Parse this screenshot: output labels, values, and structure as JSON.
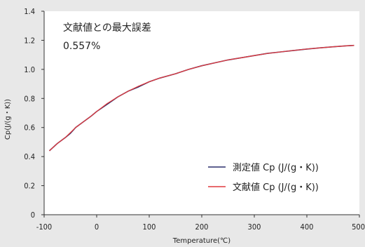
{
  "chart_data": {
    "type": "line",
    "xlabel": "Temperature(℃)",
    "ylabel": "Cp(J/(g・K))",
    "xlim": [
      -100,
      500
    ],
    "ylim": [
      0,
      1.4
    ],
    "x_ticks": [
      "-100",
      "0",
      "100",
      "200",
      "300",
      "400",
      "500"
    ],
    "y_ticks": [
      "0",
      "0.2",
      "0.4",
      "0.6",
      "0.8",
      "1.0",
      "1.2",
      "1.4"
    ],
    "grid": false,
    "legend_position": "bottom-right",
    "annotation": {
      "line1": "文献値との最大誤差",
      "line2": "0.557%"
    },
    "series": [
      {
        "name": "測定値 Cp (J/(g・K))",
        "color": "#2b2f6b",
        "x": [
          -90,
          -75,
          -60,
          -50,
          -40,
          -25,
          -10,
          0,
          20,
          40,
          60,
          80,
          100,
          120,
          150,
          175,
          200,
          225,
          250,
          275,
          300,
          325,
          350,
          375,
          400,
          425,
          450,
          475,
          490
        ],
        "y": [
          0.44,
          0.49,
          0.53,
          0.56,
          0.6,
          0.64,
          0.68,
          0.71,
          0.76,
          0.81,
          0.85,
          0.88,
          0.915,
          0.94,
          0.97,
          1.0,
          1.025,
          1.045,
          1.065,
          1.08,
          1.095,
          1.11,
          1.12,
          1.13,
          1.14,
          1.148,
          1.155,
          1.162,
          1.165
        ]
      },
      {
        "name": "文献値 Cp (J/(g・K))",
        "color": "#e03a3e",
        "x": [
          -90,
          -75,
          -60,
          -50,
          -40,
          -25,
          -10,
          0,
          20,
          40,
          60,
          80,
          100,
          120,
          150,
          175,
          200,
          225,
          250,
          275,
          300,
          325,
          350,
          375,
          400,
          425,
          450,
          475,
          490
        ],
        "y": [
          0.44,
          0.49,
          0.53,
          0.565,
          0.6,
          0.64,
          0.68,
          0.71,
          0.765,
          0.81,
          0.85,
          0.885,
          0.915,
          0.94,
          0.97,
          1.0,
          1.025,
          1.045,
          1.065,
          1.08,
          1.095,
          1.11,
          1.12,
          1.13,
          1.14,
          1.148,
          1.155,
          1.162,
          1.165
        ]
      }
    ]
  }
}
